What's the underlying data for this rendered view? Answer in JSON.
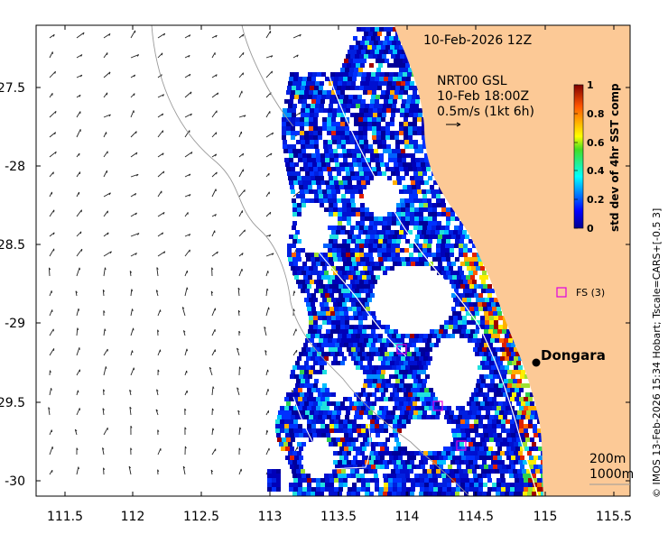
{
  "header": {
    "date_label": "10-Feb-2026 12Z"
  },
  "currents": {
    "product_line": "NRT00 GSL",
    "time_line": "10-Feb 18:00Z",
    "scale_line": "0.5m/s (1kt 6h)"
  },
  "colorbar": {
    "title": "std dev of 4hr SST comp",
    "ticks": [
      "0",
      "0.2",
      "0.4",
      "0.6",
      "0.8",
      "1"
    ],
    "min": 0,
    "max": 1
  },
  "axes": {
    "x_ticks": [
      "111.5",
      "112",
      "112.5",
      "113",
      "113.5",
      "114",
      "114.5",
      "115",
      "115.5"
    ],
    "y_ticks": [
      "-27.5",
      "-28",
      "-28.5",
      "-29",
      "-29.5",
      "-30"
    ],
    "x_range": [
      111.3,
      115.65
    ],
    "y_range": [
      -30.1,
      -27.1
    ]
  },
  "places": {
    "town": "Dongara",
    "station": "FS (3)"
  },
  "isobaths": {
    "line1": "200m",
    "line2": "1000m"
  },
  "credit": "© IMOS 13-Feb-2026 15:34 Hobart; Tscale=CARS+[-0.5 3]",
  "colors": {
    "land": "#fcc996",
    "marker": "#e000e0",
    "ocean": "#ffffff"
  }
}
